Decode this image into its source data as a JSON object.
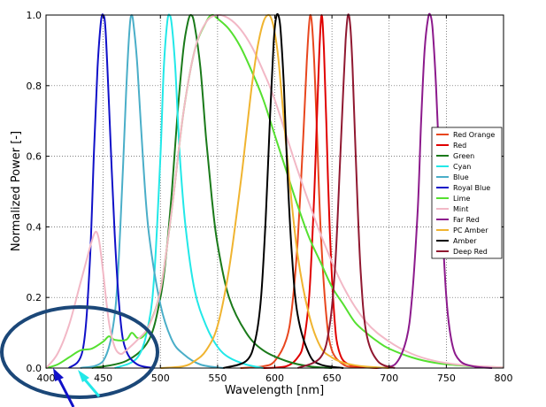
{
  "chart_data": {
    "type": "line",
    "xlabel": "Wavelength [nm]",
    "ylabel": "Normalized Power [-]",
    "xlim": [
      400,
      800
    ],
    "ylim": [
      0,
      1.0
    ],
    "xticks": [
      400,
      450,
      500,
      550,
      600,
      650,
      700,
      750,
      800
    ],
    "yticks": [
      0.0,
      0.2,
      0.4,
      0.6,
      0.8,
      1.0
    ],
    "xtick_labels": [
      "400",
      "450",
      "500",
      "550",
      "600",
      "650",
      "700",
      "750",
      "800"
    ],
    "ytick_labels": [
      "0.0",
      "0.2",
      "0.4",
      "0.6",
      "0.8",
      "1.0"
    ],
    "grid": true,
    "legend_position": "right",
    "series": [
      {
        "name": "Red Orange",
        "color": "#e8461e",
        "x": [
          570,
          590,
          600,
          610,
          615,
          620,
          625,
          628,
          631,
          634,
          637,
          640,
          645,
          650,
          660,
          670,
          690
        ],
        "y": [
          0,
          0.005,
          0.02,
          0.08,
          0.17,
          0.36,
          0.66,
          0.87,
          1.0,
          0.9,
          0.66,
          0.4,
          0.15,
          0.05,
          0.01,
          0.003,
          0
        ]
      },
      {
        "name": "Red",
        "color": "#e00000",
        "x": [
          590,
          610,
          620,
          625,
          630,
          634,
          637,
          639,
          641,
          643,
          645,
          648,
          652,
          656,
          665,
          690
        ],
        "y": [
          0,
          0.005,
          0.03,
          0.07,
          0.2,
          0.45,
          0.72,
          0.9,
          1.0,
          0.9,
          0.7,
          0.4,
          0.15,
          0.05,
          0.01,
          0
        ]
      },
      {
        "name": "Green",
        "color": "#1a7a1a",
        "x": [
          440,
          470,
          490,
          500,
          505,
          510,
          515,
          520,
          524,
          527,
          530,
          535,
          540,
          545,
          550,
          560,
          575,
          590,
          610,
          630,
          650
        ],
        "y": [
          0,
          0.02,
          0.08,
          0.2,
          0.32,
          0.5,
          0.72,
          0.9,
          0.98,
          1.0,
          0.97,
          0.85,
          0.65,
          0.48,
          0.35,
          0.2,
          0.1,
          0.05,
          0.02,
          0.005,
          0
        ]
      },
      {
        "name": "Cyan",
        "color": "#22e8e8",
        "x": [
          460,
          480,
          490,
          495,
          500,
          503,
          506,
          508,
          510,
          513,
          517,
          522,
          530,
          540,
          550,
          560,
          575,
          590
        ],
        "y": [
          0,
          0.03,
          0.13,
          0.28,
          0.6,
          0.85,
          0.98,
          1.0,
          0.97,
          0.85,
          0.6,
          0.4,
          0.22,
          0.12,
          0.06,
          0.03,
          0.01,
          0
        ]
      },
      {
        "name": "Blue",
        "color": "#4aaec8",
        "x": [
          430,
          450,
          460,
          465,
          470,
          473,
          475,
          477,
          480,
          485,
          490,
          500,
          510,
          520,
          535,
          555
        ],
        "y": [
          0,
          0.02,
          0.15,
          0.4,
          0.78,
          0.96,
          1.0,
          0.96,
          0.85,
          0.58,
          0.38,
          0.18,
          0.08,
          0.04,
          0.01,
          0
        ]
      },
      {
        "name": "Royal Blue",
        "color": "#1010c8",
        "x": [
          420,
          432,
          438,
          442,
          445,
          448,
          450,
          452,
          455,
          460,
          465,
          470,
          480,
          495
        ],
        "y": [
          0,
          0.05,
          0.28,
          0.62,
          0.85,
          0.98,
          1.0,
          0.96,
          0.75,
          0.38,
          0.14,
          0.05,
          0.01,
          0
        ]
      },
      {
        "name": "Lime",
        "color": "#55e030",
        "x": [
          400,
          410,
          420,
          430,
          440,
          450,
          455,
          460,
          470,
          475,
          480,
          485,
          490,
          500,
          510,
          520,
          530,
          540,
          545,
          550,
          560,
          570,
          580,
          590,
          600,
          610,
          620,
          630,
          640,
          650,
          660,
          670,
          680,
          690,
          700,
          720,
          740,
          760,
          780,
          800
        ],
        "y": [
          0,
          0.01,
          0.03,
          0.05,
          0.055,
          0.075,
          0.09,
          0.08,
          0.08,
          0.1,
          0.085,
          0.09,
          0.12,
          0.22,
          0.45,
          0.72,
          0.9,
          0.98,
          1.0,
          0.99,
          0.96,
          0.91,
          0.84,
          0.76,
          0.66,
          0.56,
          0.46,
          0.37,
          0.3,
          0.23,
          0.18,
          0.13,
          0.1,
          0.075,
          0.055,
          0.03,
          0.015,
          0.008,
          0.004,
          0.002
        ]
      },
      {
        "name": "Mint",
        "color": "#f2b8c6",
        "x": [
          400,
          410,
          420,
          430,
          435,
          440,
          443,
          445,
          447,
          450,
          455,
          460,
          465,
          470,
          480,
          490,
          500,
          510,
          520,
          530,
          540,
          550,
          560,
          570,
          580,
          590,
          600,
          620,
          640,
          660,
          680,
          700,
          720,
          740,
          760,
          780,
          800
        ],
        "y": [
          0,
          0.04,
          0.12,
          0.24,
          0.3,
          0.36,
          0.385,
          0.38,
          0.35,
          0.27,
          0.13,
          0.06,
          0.04,
          0.05,
          0.08,
          0.12,
          0.22,
          0.45,
          0.72,
          0.9,
          0.98,
          1.0,
          0.99,
          0.96,
          0.91,
          0.84,
          0.76,
          0.56,
          0.38,
          0.23,
          0.13,
          0.075,
          0.04,
          0.02,
          0.01,
          0.005,
          0.002
        ]
      },
      {
        "name": "Far Red",
        "color": "#8c1a8c",
        "x": [
          690,
          705,
          715,
          720,
          725,
          728,
          731,
          734,
          736,
          738,
          741,
          745,
          750,
          755,
          762,
          775,
          790
        ],
        "y": [
          0,
          0.01,
          0.08,
          0.2,
          0.45,
          0.7,
          0.9,
          0.99,
          1.0,
          0.96,
          0.8,
          0.5,
          0.2,
          0.07,
          0.02,
          0.004,
          0
        ]
      },
      {
        "name": "PC Amber",
        "color": "#f0b430",
        "x": [
          500,
          520,
          530,
          540,
          550,
          560,
          570,
          575,
          580,
          585,
          590,
          594,
          597,
          600,
          603,
          607,
          612,
          620,
          630,
          640,
          650,
          660,
          670,
          680,
          690,
          700
        ],
        "y": [
          0,
          0.005,
          0.02,
          0.05,
          0.12,
          0.28,
          0.52,
          0.66,
          0.8,
          0.91,
          0.98,
          1.0,
          0.99,
          0.95,
          0.88,
          0.74,
          0.56,
          0.32,
          0.15,
          0.06,
          0.03,
          0.015,
          0.008,
          0.004,
          0.002,
          0
        ]
      },
      {
        "name": "Amber",
        "color": "#000000",
        "x": [
          555,
          575,
          583,
          588,
          592,
          596,
          599,
          601,
          603,
          605,
          608,
          611,
          615,
          620,
          630,
          640,
          660
        ],
        "y": [
          0,
          0.02,
          0.08,
          0.2,
          0.42,
          0.72,
          0.92,
          0.99,
          1.0,
          0.96,
          0.8,
          0.56,
          0.32,
          0.15,
          0.04,
          0.01,
          0
        ]
      },
      {
        "name": "Deep Red",
        "color": "#901830",
        "x": [
          620,
          640,
          648,
          653,
          657,
          660,
          662,
          664,
          666,
          668,
          671,
          675,
          680,
          690,
          705
        ],
        "y": [
          0,
          0.03,
          0.12,
          0.3,
          0.58,
          0.8,
          0.93,
          1.0,
          0.97,
          0.85,
          0.58,
          0.28,
          0.1,
          0.02,
          0
        ]
      }
    ]
  },
  "annotation": {
    "ellipse_color": "#1b4778",
    "arrow_blue_color": "#1010c8",
    "arrow_cyan_color": "#22e8e8"
  }
}
